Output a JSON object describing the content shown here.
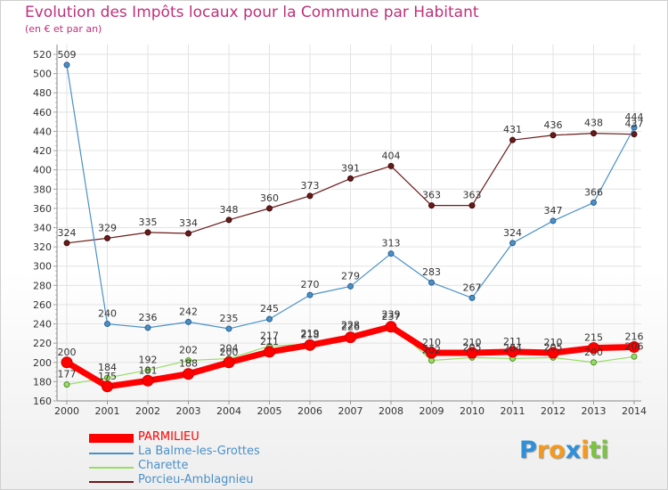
{
  "chart_data": {
    "type": "line",
    "title": "Evolution des Impôts locaux pour la Commune par Habitant",
    "subtitle": "(en € et par an)",
    "x": [
      "2000",
      "2001",
      "2002",
      "2003",
      "2004",
      "2005",
      "2006",
      "2007",
      "2008",
      "2009",
      "2010",
      "2011",
      "2012",
      "2013",
      "2014"
    ],
    "ylim": [
      160,
      520
    ],
    "yticks": [
      160,
      180,
      200,
      220,
      240,
      260,
      280,
      300,
      320,
      340,
      360,
      380,
      400,
      420,
      440,
      460,
      480,
      500,
      520
    ],
    "grid": true,
    "legend_position": "bottom-left",
    "series": [
      {
        "name": "PARMILIEU",
        "color": "#ff0000",
        "values": [
          200,
          175,
          181,
          188,
          200,
          211,
          218,
          226,
          237,
          210,
          210,
          211,
          210,
          215,
          216
        ]
      },
      {
        "name": "La Balme-les-Grottes",
        "color": "#4a90c8",
        "values": [
          509,
          240,
          236,
          242,
          235,
          245,
          270,
          279,
          313,
          283,
          267,
          324,
          347,
          366,
          444
        ]
      },
      {
        "name": "Charette",
        "color": "#99dd66",
        "values": [
          177,
          184,
          192,
          202,
          204,
          217,
          219,
          228,
          239,
          202,
          205,
          204,
          205,
          200,
          206
        ]
      },
      {
        "name": "Porcieu-Amblagnieu",
        "color": "#6b1a1a",
        "values": [
          324,
          329,
          335,
          334,
          348,
          360,
          373,
          391,
          404,
          363,
          363,
          431,
          436,
          438,
          437
        ]
      }
    ]
  },
  "legend": {
    "items": [
      {
        "label": "PARMILIEU",
        "color": "#ff0000"
      },
      {
        "label": "La Balme-les-Grottes",
        "color": "#4a90c8"
      },
      {
        "label": "Charette",
        "color": "#99dd66"
      },
      {
        "label": "Porcieu-Amblagnieu",
        "color": "#6b1a1a"
      }
    ]
  },
  "logo": {
    "letters": [
      "P",
      "r",
      "o",
      "x",
      "i",
      "t",
      "i"
    ],
    "colors": [
      "#2f8fd8",
      "#f39a1e",
      "#f39a1e",
      "#2f8fd8",
      "#f39a1e",
      "#7dc243",
      "#7dc243"
    ]
  }
}
